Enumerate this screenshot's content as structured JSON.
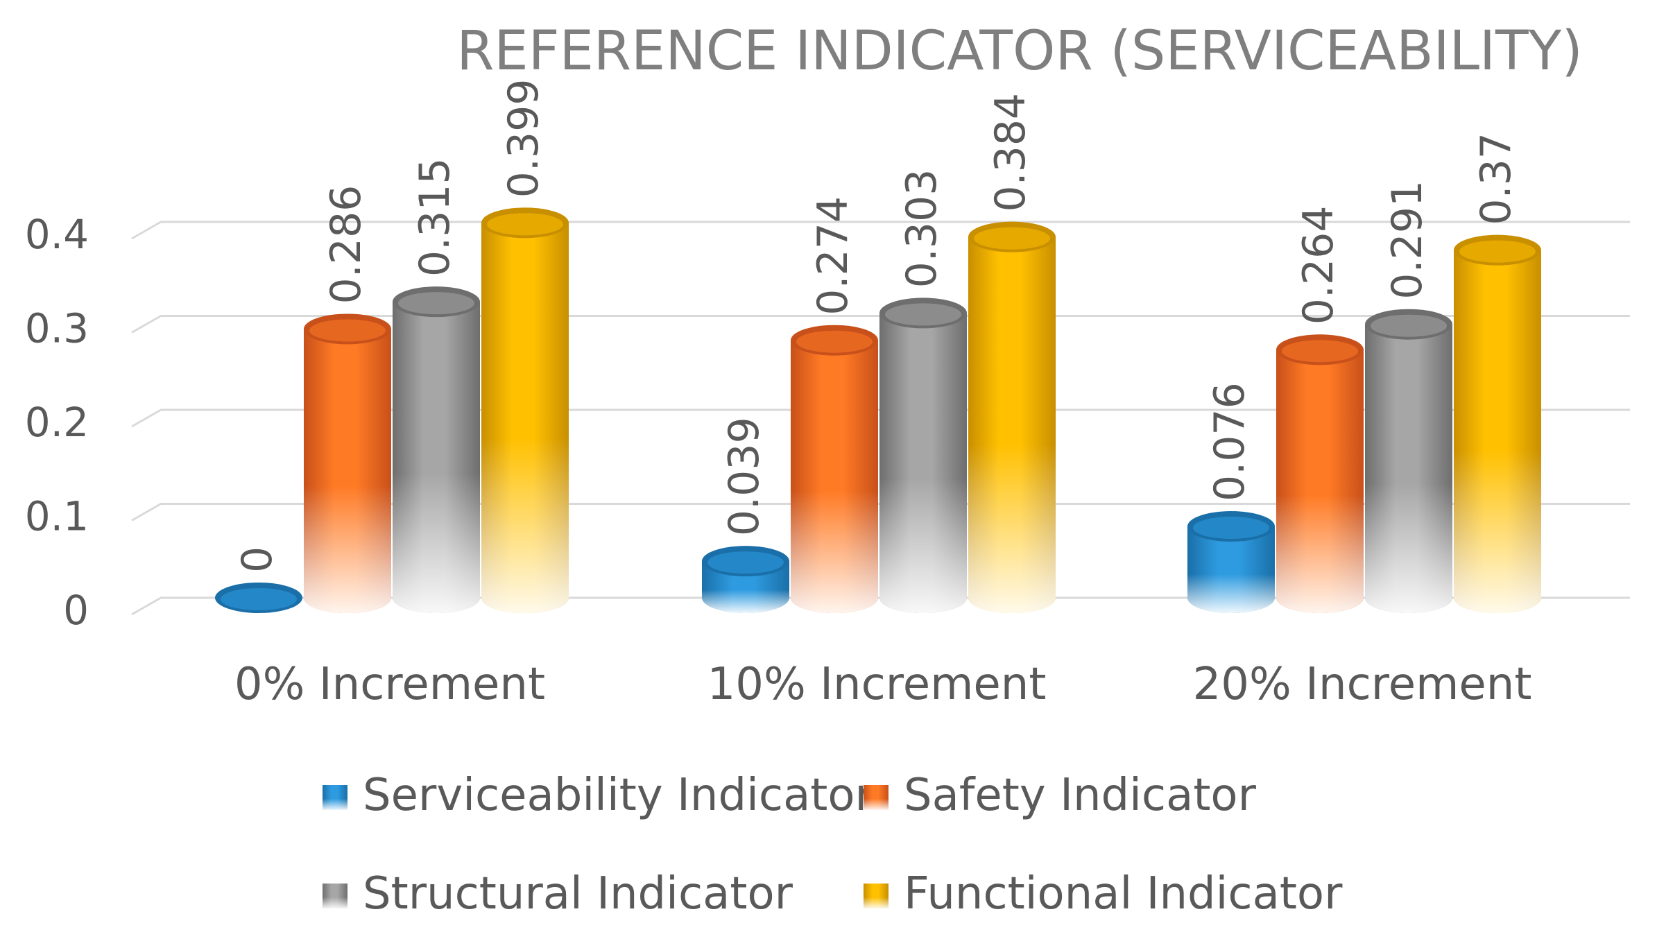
{
  "chart_data": {
    "type": "bar",
    "title": "REFERENCE INDICATOR (SERVICEABILITY)",
    "xlabel": "",
    "ylabel": "",
    "ylim": [
      0,
      0.4
    ],
    "yticks": [
      0,
      0.1,
      0.2,
      0.3,
      0.4
    ],
    "ytick_labels": [
      "0",
      "0.1",
      "0.2",
      "0.3",
      "0.4"
    ],
    "grid": true,
    "legend_position": "bottom",
    "categories": [
      "0% Increment",
      "10% Increment",
      "20% Increment"
    ],
    "series": [
      {
        "name": "Serviceability Indicator",
        "values": [
          0,
          0.039,
          0.076
        ],
        "labels": [
          "0",
          "0.039",
          "0.076"
        ],
        "color": "#2e9be0",
        "dark": "#1a6fa8"
      },
      {
        "name": "Safety Indicator",
        "values": [
          0.286,
          0.274,
          0.264
        ],
        "labels": [
          "0.286",
          "0.274",
          "0.264"
        ],
        "color": "#ff7a24",
        "dark": "#c8501a"
      },
      {
        "name": "Structural Indicator",
        "values": [
          0.315,
          0.303,
          0.291
        ],
        "labels": [
          "0.315",
          "0.303",
          "0.291"
        ],
        "color": "#a6a6a6",
        "dark": "#6e6e6e"
      },
      {
        "name": "Functional Indicator",
        "values": [
          0.399,
          0.384,
          0.37
        ],
        "labels": [
          "0.399",
          "0.384",
          "0.37"
        ],
        "color": "#ffc000",
        "dark": "#c88f00"
      }
    ]
  }
}
